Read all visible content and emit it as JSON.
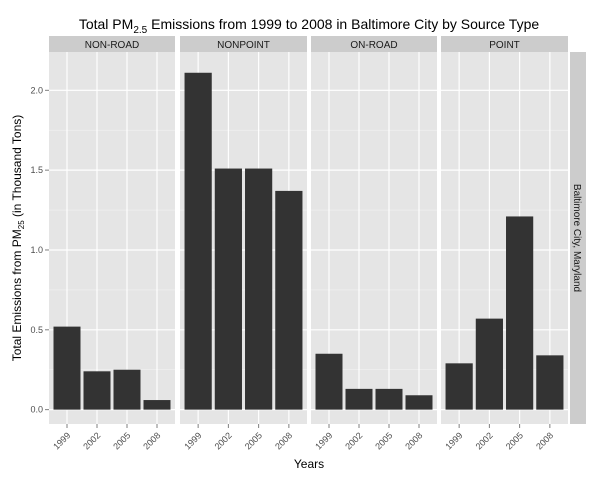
{
  "chart_data": {
    "type": "bar",
    "title": {
      "prefix": "Total PM",
      "subscript": "2.5",
      "suffix": " Emissions from 1999 to 2008 in Baltimore City by Source Type"
    },
    "xlabel": "Years",
    "ylabel": {
      "prefix": "Total Emissions from  PM",
      "subscript": "25",
      "suffix": " (in Thousand Tons)"
    },
    "row_facet_label": "Baltimore City, Maryland",
    "categories": [
      "1999",
      "2002",
      "2005",
      "2008"
    ],
    "y_ticks": [
      0.0,
      0.5,
      1.0,
      1.5,
      2.0
    ],
    "y_tick_labels": [
      "0.0",
      "0.5",
      "1.0",
      "1.5",
      "2.0"
    ],
    "ylim": [
      -0.09,
      2.24
    ],
    "grid": true,
    "bar_color": "#333333",
    "panel_color": "#e5e5e5",
    "strip_color": "#cccccc",
    "facets": [
      {
        "name": "NON-ROAD",
        "values": [
          0.52,
          0.24,
          0.25,
          0.06
        ]
      },
      {
        "name": "NONPOINT",
        "values": [
          2.11,
          1.51,
          1.51,
          1.37
        ]
      },
      {
        "name": "ON-ROAD",
        "values": [
          0.35,
          0.13,
          0.13,
          0.09
        ]
      },
      {
        "name": "POINT",
        "values": [
          0.29,
          0.57,
          1.21,
          0.34
        ]
      }
    ]
  }
}
